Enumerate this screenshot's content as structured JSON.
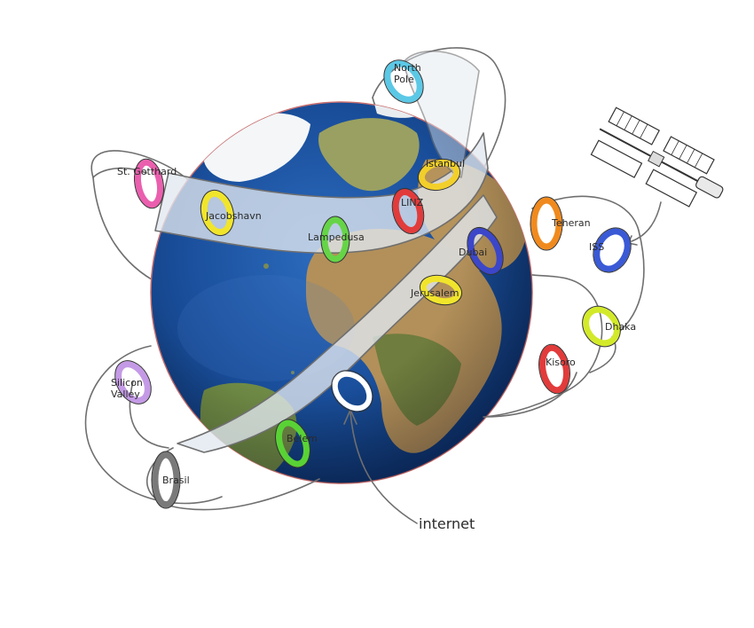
{
  "rings": [
    {
      "id": "north-pole",
      "label": "North\nPole",
      "color": "#5bc8e6"
    },
    {
      "id": "istanbul",
      "label": "Istanbul",
      "color": "#f2cf2a"
    },
    {
      "id": "st-gotthard",
      "label": "St. Gotthard",
      "color": "#ea5fae"
    },
    {
      "id": "jacobshavn",
      "label": "Jacobshavn",
      "color": "#f1e52c"
    },
    {
      "id": "lampedusa",
      "label": "Lampedusa",
      "color": "#66d447"
    },
    {
      "id": "linz",
      "label": "LINZ",
      "color": "#e23b3b"
    },
    {
      "id": "dubai",
      "label": "Dubai",
      "color": "#3b46c9"
    },
    {
      "id": "teheran",
      "label": "Teheran",
      "color": "#f08a1e"
    },
    {
      "id": "iss",
      "label": "ISS",
      "color": "#3a5ad6"
    },
    {
      "id": "jerusalem",
      "label": "Jerusalem",
      "color": "#f1e52c"
    },
    {
      "id": "dhaka",
      "label": "Dhaka",
      "color": "#d3ea2a"
    },
    {
      "id": "kisoro",
      "label": "Kisoro",
      "color": "#e23b3b"
    },
    {
      "id": "silicon-valley",
      "label": "Silicon\nValley",
      "color": "#c49ae6"
    },
    {
      "id": "belem",
      "label": "Belem",
      "color": "#59d235"
    },
    {
      "id": "brasil",
      "label": "Brasil",
      "color": "#7a7a7a"
    },
    {
      "id": "internet",
      "label": "",
      "color": "#ffffff"
    }
  ],
  "callout": {
    "label": "internet"
  },
  "icons": {
    "globe": "earth-globe-icon",
    "satellite": "space-station-icon"
  }
}
